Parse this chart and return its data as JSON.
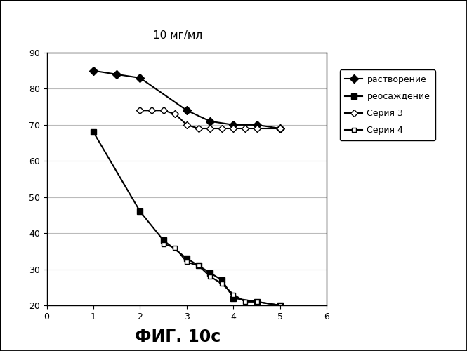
{
  "title": "10 мг/мл",
  "fig_label": "ФИГ. 10с",
  "xlim": [
    0,
    6
  ],
  "ylim": [
    20,
    90
  ],
  "yticks": [
    20,
    30,
    40,
    50,
    60,
    70,
    80,
    90
  ],
  "xticks": [
    0,
    1,
    2,
    3,
    4,
    5,
    6
  ],
  "series1": {
    "label": "растворение",
    "x": [
      1,
      1.5,
      2,
      3,
      3.5,
      4,
      4.5,
      5
    ],
    "y": [
      85,
      84,
      83,
      74,
      71,
      70,
      70,
      69
    ],
    "color": "#000000",
    "marker": "D",
    "markersize": 6,
    "linestyle": "-",
    "markerfacecolor": "#000000"
  },
  "series2": {
    "label": "реосаждение",
    "x": [
      1,
      2,
      2.5,
      3,
      3.25,
      3.5,
      3.75,
      4,
      4.5,
      5
    ],
    "y": [
      68,
      46,
      38,
      33,
      31,
      29,
      27,
      22,
      21,
      20
    ],
    "color": "#000000",
    "marker": "s",
    "markersize": 6,
    "linestyle": "-",
    "markerfacecolor": "#000000"
  },
  "series3": {
    "label": "Серия 3",
    "x": [
      2,
      2.25,
      2.5,
      2.75,
      3,
      3.25,
      3.5,
      3.75,
      4,
      4.25,
      4.5,
      5
    ],
    "y": [
      74,
      74,
      74,
      73,
      70,
      69,
      69,
      69,
      69,
      69,
      69,
      69
    ],
    "color": "#000000",
    "marker": "D",
    "markersize": 5,
    "linestyle": "-",
    "markerfacecolor": "white"
  },
  "series4": {
    "label": "Серия 4",
    "x": [
      2.5,
      2.75,
      3,
      3.25,
      3.5,
      3.75,
      4,
      4.25,
      4.5,
      5
    ],
    "y": [
      37,
      36,
      32,
      31,
      28,
      26,
      23,
      21,
      21,
      20
    ],
    "color": "#000000",
    "marker": "s",
    "markersize": 5,
    "linestyle": "-",
    "markerfacecolor": "white"
  },
  "background_color": "#ffffff",
  "grid_color": "#bbbbbb",
  "fig_bg": "#ffffff",
  "border_color": "#000000"
}
